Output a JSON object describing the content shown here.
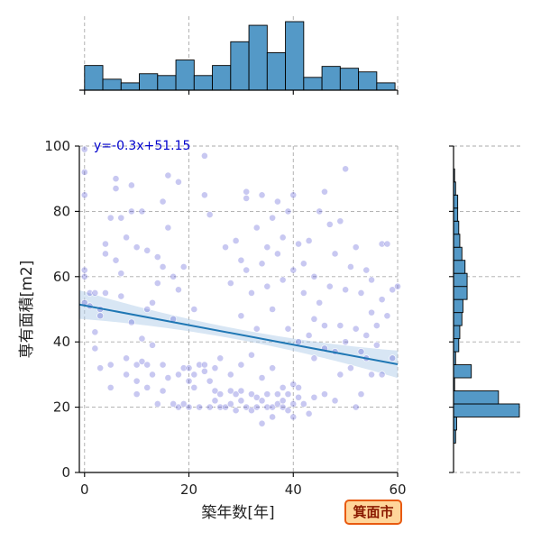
{
  "chart_data": {
    "type": "scatter",
    "title": "",
    "xlabel": "築年数[年]",
    "ylabel": "専有面積[m2]",
    "xlim": [
      -1,
      60
    ],
    "ylim": [
      0,
      100
    ],
    "xticks": [
      0,
      20,
      40,
      60
    ],
    "yticks": [
      0,
      20,
      40,
      60,
      80,
      100
    ],
    "grid": true,
    "regression": {
      "slope": -0.3,
      "intercept": 51.15,
      "label": "y=-0.3x+51.15"
    },
    "badge": "箕面市",
    "colors": {
      "points": "#3a3acc",
      "regression": "#1f77b4",
      "confidence_band": "#a9c8e6",
      "histogram": "#5499c7",
      "badge_fill": "#ffd59a",
      "badge_stroke": "#e85a10"
    },
    "x_marginal_histogram": {
      "bin_edges": [
        0,
        3.5,
        7,
        10.5,
        14,
        17.5,
        21,
        24.5,
        28,
        31.5,
        35,
        38.5,
        42,
        45.5,
        49,
        52.5,
        56,
        59.5
      ],
      "counts": [
        27,
        12,
        8,
        18,
        16,
        33,
        16,
        27,
        53,
        71,
        41,
        75,
        14,
        26,
        24,
        20,
        8
      ]
    },
    "y_marginal_histogram": {
      "bin_edges": [
        9,
        13,
        17,
        21,
        25,
        29,
        33,
        37,
        41,
        45,
        49,
        53,
        57,
        61,
        65,
        69,
        73,
        77,
        81,
        85,
        89,
        93,
        97,
        101
      ],
      "counts": [
        2,
        3,
        63,
        43,
        1,
        17,
        2,
        5,
        6,
        8,
        9,
        13,
        13,
        11,
        8,
        6,
        5,
        4,
        4,
        2,
        1,
        0,
        0
      ]
    },
    "series": [
      {
        "points": [
          [
            0,
            99
          ],
          [
            0,
            92
          ],
          [
            0,
            85
          ],
          [
            0,
            62
          ],
          [
            0,
            60
          ],
          [
            0,
            52
          ],
          [
            1,
            51
          ],
          [
            1,
            55
          ],
          [
            2,
            55
          ],
          [
            2,
            43
          ],
          [
            2,
            38
          ],
          [
            3,
            50
          ],
          [
            3,
            32
          ],
          [
            3,
            48
          ],
          [
            4,
            67
          ],
          [
            4,
            55
          ],
          [
            4,
            70
          ],
          [
            5,
            33
          ],
          [
            5,
            26
          ],
          [
            5,
            78
          ],
          [
            6,
            90
          ],
          [
            6,
            87
          ],
          [
            6,
            65
          ],
          [
            7,
            78
          ],
          [
            7,
            61
          ],
          [
            7,
            54
          ],
          [
            8,
            30
          ],
          [
            8,
            35
          ],
          [
            8,
            72
          ],
          [
            9,
            80
          ],
          [
            9,
            88
          ],
          [
            9,
            46
          ],
          [
            10,
            33
          ],
          [
            10,
            24
          ],
          [
            10,
            69
          ],
          [
            11,
            34
          ],
          [
            11,
            41
          ],
          [
            11,
            80
          ],
          [
            12,
            33
          ],
          [
            12,
            68
          ],
          [
            12,
            50
          ],
          [
            13,
            30
          ],
          [
            13,
            39
          ],
          [
            13,
            52
          ],
          [
            14,
            21
          ],
          [
            14,
            58
          ],
          [
            14,
            66
          ],
          [
            15,
            33
          ],
          [
            15,
            83
          ],
          [
            15,
            63
          ],
          [
            16,
            29
          ],
          [
            16,
            91
          ],
          [
            16,
            75
          ],
          [
            17,
            21
          ],
          [
            17,
            60
          ],
          [
            17,
            47
          ],
          [
            18,
            20
          ],
          [
            18,
            30
          ],
          [
            18,
            89
          ],
          [
            18,
            56
          ],
          [
            19,
            32
          ],
          [
            19,
            21
          ],
          [
            19,
            63
          ],
          [
            20,
            20
          ],
          [
            20,
            28
          ],
          [
            20,
            32
          ],
          [
            21,
            30
          ],
          [
            21,
            50
          ],
          [
            22,
            20
          ],
          [
            22,
            33
          ],
          [
            23,
            97
          ],
          [
            23,
            85
          ],
          [
            23,
            33
          ],
          [
            24,
            20
          ],
          [
            24,
            28
          ],
          [
            24,
            79
          ],
          [
            25,
            25
          ],
          [
            25,
            22
          ],
          [
            26,
            20
          ],
          [
            26,
            24
          ],
          [
            27,
            69
          ],
          [
            27,
            20
          ],
          [
            28,
            25
          ],
          [
            28,
            58
          ],
          [
            28,
            21
          ],
          [
            29,
            24
          ],
          [
            29,
            71
          ],
          [
            29,
            19
          ],
          [
            30,
            25
          ],
          [
            30,
            65
          ],
          [
            30,
            48
          ],
          [
            30,
            22
          ],
          [
            31,
            86
          ],
          [
            31,
            62
          ],
          [
            31,
            20
          ],
          [
            31,
            84
          ],
          [
            32,
            24
          ],
          [
            32,
            55
          ],
          [
            32,
            19
          ],
          [
            33,
            20
          ],
          [
            33,
            75
          ],
          [
            33,
            44
          ],
          [
            33,
            23
          ],
          [
            34,
            85
          ],
          [
            34,
            22
          ],
          [
            34,
            64
          ],
          [
            34,
            15
          ],
          [
            35,
            24
          ],
          [
            35,
            69
          ],
          [
            35,
            20
          ],
          [
            35,
            57
          ],
          [
            36,
            20
          ],
          [
            36,
            78
          ],
          [
            36,
            50
          ],
          [
            36,
            17
          ],
          [
            37,
            24
          ],
          [
            37,
            83
          ],
          [
            37,
            67
          ],
          [
            37,
            21
          ],
          [
            38,
            20
          ],
          [
            38,
            59
          ],
          [
            38,
            22
          ],
          [
            38,
            72
          ],
          [
            39,
            24
          ],
          [
            39,
            80
          ],
          [
            39,
            44
          ],
          [
            39,
            19
          ],
          [
            40,
            21
          ],
          [
            40,
            62
          ],
          [
            40,
            85
          ],
          [
            40,
            17
          ],
          [
            41,
            70
          ],
          [
            41,
            40
          ],
          [
            41,
            23
          ],
          [
            42,
            55
          ],
          [
            42,
            21
          ],
          [
            42,
            64
          ],
          [
            43,
            71
          ],
          [
            43,
            42
          ],
          [
            44,
            23
          ],
          [
            44,
            60
          ],
          [
            44,
            35
          ],
          [
            45,
            80
          ],
          [
            45,
            52
          ],
          [
            46,
            86
          ],
          [
            46,
            45
          ],
          [
            46,
            24
          ],
          [
            47,
            76
          ],
          [
            47,
            57
          ],
          [
            48,
            37
          ],
          [
            48,
            22
          ],
          [
            48,
            67
          ],
          [
            49,
            77
          ],
          [
            49,
            45
          ],
          [
            49,
            30
          ],
          [
            50,
            93
          ],
          [
            50,
            40
          ],
          [
            50,
            56
          ],
          [
            51,
            63
          ],
          [
            51,
            32
          ],
          [
            52,
            44
          ],
          [
            52,
            20
          ],
          [
            52,
            69
          ],
          [
            53,
            55
          ],
          [
            53,
            37
          ],
          [
            53,
            24
          ],
          [
            54,
            62
          ],
          [
            54,
            42
          ],
          [
            54,
            35
          ],
          [
            55,
            49
          ],
          [
            55,
            59
          ],
          [
            55,
            30
          ],
          [
            56,
            45
          ],
          [
            56,
            39
          ],
          [
            57,
            70
          ],
          [
            57,
            53
          ],
          [
            57,
            30
          ],
          [
            58,
            48
          ],
          [
            58,
            70
          ],
          [
            59,
            35
          ],
          [
            59,
            56
          ],
          [
            60,
            57
          ],
          [
            30,
            33
          ],
          [
            32,
            36
          ],
          [
            34,
            29
          ],
          [
            36,
            32
          ],
          [
            38,
            26
          ],
          [
            40,
            27
          ],
          [
            26,
            35
          ],
          [
            28,
            30
          ],
          [
            41,
            26
          ],
          [
            43,
            18
          ],
          [
            21,
            26
          ],
          [
            23,
            31
          ],
          [
            25,
            32
          ],
          [
            15,
            25
          ],
          [
            12,
            26
          ],
          [
            10,
            28
          ],
          [
            44,
            47
          ],
          [
            46,
            38
          ]
        ]
      }
    ]
  }
}
